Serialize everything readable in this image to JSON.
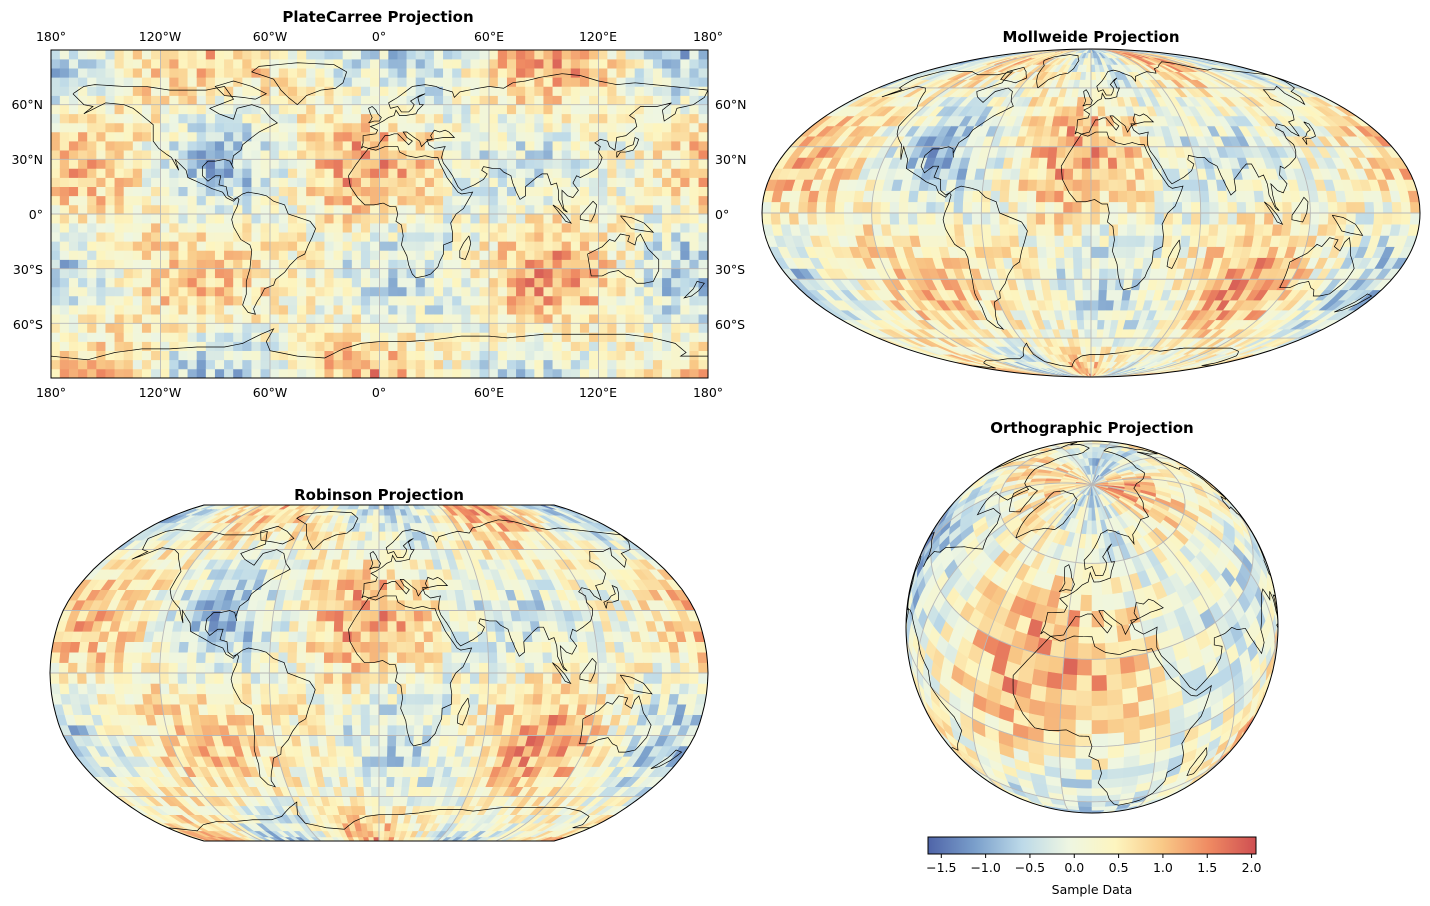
{
  "panels": {
    "platecarree": {
      "title": "PlateCarree Projection",
      "lon_labels": [
        "180°",
        "120°W",
        "60°W",
        "0°",
        "60°E",
        "120°E",
        "180°"
      ],
      "lat_labels": [
        "60°N",
        "30°N",
        "0°",
        "30°S",
        "60°S"
      ]
    },
    "mollweide": {
      "title": "Mollweide Projection"
    },
    "robinson": {
      "title": "Robinson Projection"
    },
    "orthographic": {
      "title": "Orthographic Projection"
    }
  },
  "colorbar": {
    "label": "Sample Data",
    "tick_labels": [
      "−1.5",
      "−1.0",
      "−0.5",
      "0.0",
      "0.5",
      "1.0",
      "1.5",
      "2.0"
    ],
    "ticks": [
      -1.5,
      -1.0,
      -0.5,
      0.0,
      0.5,
      1.0,
      1.5,
      2.0
    ],
    "range": [
      -1.65,
      2.05
    ],
    "colormap": "RdYlBu_r",
    "colors": [
      "#4f64a8",
      "#7a9fcb",
      "#bcd9e8",
      "#eef6e2",
      "#fdf5bf",
      "#f9c987",
      "#ef8a62",
      "#cf4f52"
    ]
  },
  "chart_data": {
    "type": "heatmap",
    "grid": "5-degree lon/lat cells, global",
    "field": "sample data, range approx -1.65 to 2.05",
    "colors": {
      "gridline": "#b8b8b8",
      "coastline": "#000000",
      "frame": "#000000"
    }
  }
}
